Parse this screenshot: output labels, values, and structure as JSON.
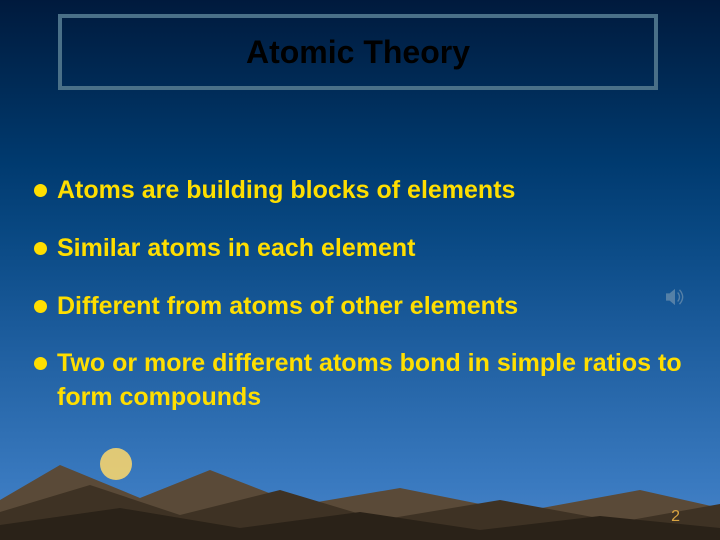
{
  "slide": {
    "title": "Atomic Theory",
    "title_fontsize": 32,
    "title_color": "#000000",
    "title_box_border_color": "#4a7088",
    "title_box_bg": "transparent",
    "bullets": [
      {
        "text": "Atoms are building blocks of elements"
      },
      {
        "text": "Similar atoms in each element"
      },
      {
        "text": "Different from atoms of other elements"
      },
      {
        "text": "Two or more different atoms bond in simple ratios to form compounds"
      }
    ],
    "bullet_fontsize": 25,
    "bullet_text_color": "#ffde00",
    "bullet_dot_color": "#ffde00",
    "bullet_dot_size": 13,
    "slide_number": "2",
    "slide_number_color": "#d9a440",
    "slide_number_fontsize": 16,
    "background_gradient": {
      "top": "#001a3d",
      "bottom": "#4a84c8"
    },
    "terrain_colors": {
      "back_hill": "#5a4a38",
      "mid_hill": "#3e3224",
      "front_hill": "#2a2218",
      "sun": "#ffd86a"
    },
    "sound_icon_color": "#8aa4b8"
  }
}
